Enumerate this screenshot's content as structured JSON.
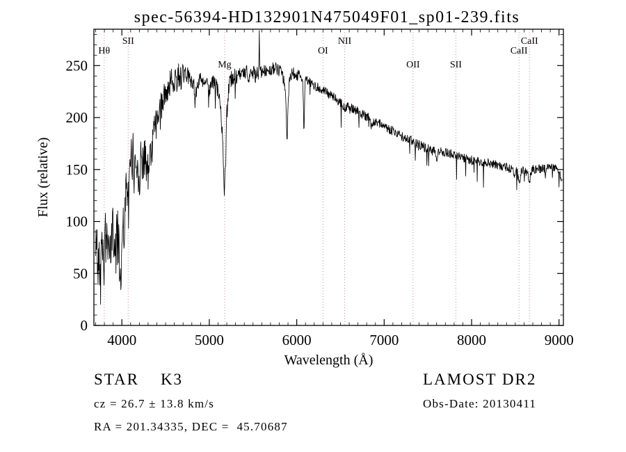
{
  "chart_data": {
    "type": "line",
    "title": "spec-56394-HD132901N475049F01_sp01-239.fits",
    "xlabel": "Wavelength (Å)",
    "ylabel": "Flux (relative)",
    "xlim": [
      3680,
      9050
    ],
    "ylim": [
      0,
      285
    ],
    "x_major_ticks": [
      4000,
      5000,
      6000,
      7000,
      8000,
      9000
    ],
    "x_minor_step": 100,
    "y_major_ticks": [
      0,
      50,
      100,
      150,
      200,
      250
    ],
    "y_minor_step": 10,
    "grid": false,
    "line_color": "#000000",
    "marker_line_color": "#c98b8b",
    "marker_label_color": "#1a1a1a",
    "marker_label_levels": [
      63,
      77,
      97
    ],
    "line_markers": [
      {
        "label": "Hθ",
        "wavelength": 3798,
        "level": 1
      },
      {
        "label": "SII",
        "wavelength": 4072,
        "level": 0
      },
      {
        "label": "Mg",
        "wavelength": 5175,
        "level": 2
      },
      {
        "label": "OI",
        "wavelength": 6300,
        "level": 1
      },
      {
        "label": "NII",
        "wavelength": 6548,
        "level": 0
      },
      {
        "label": "OII",
        "wavelength": 7330,
        "level": 2
      },
      {
        "label": "SII",
        "wavelength": 7820,
        "level": 2
      },
      {
        "label": "CaII",
        "wavelength": 8662,
        "level": 0
      },
      {
        "label": "CaII",
        "wavelength": 8542,
        "level": 1
      }
    ],
    "series": [
      {
        "name": "spectrum",
        "control_points": [
          [
            3700,
            62
          ],
          [
            3710,
            95
          ],
          [
            3725,
            45
          ],
          [
            3740,
            88
          ],
          [
            3755,
            35
          ],
          [
            3770,
            90
          ],
          [
            3785,
            70
          ],
          [
            3800,
            55
          ],
          [
            3815,
            95
          ],
          [
            3830,
            75
          ],
          [
            3850,
            88
          ],
          [
            3870,
            60
          ],
          [
            3890,
            95
          ],
          [
            3910,
            80
          ],
          [
            3930,
            70
          ],
          [
            3950,
            105
          ],
          [
            3970,
            60
          ],
          [
            3990,
            40
          ],
          [
            4010,
            110
          ],
          [
            4030,
            90
          ],
          [
            4050,
            135
          ],
          [
            4075,
            120
          ],
          [
            4100,
            155
          ],
          [
            4125,
            165
          ],
          [
            4150,
            150
          ],
          [
            4175,
            160
          ],
          [
            4200,
            145
          ],
          [
            4225,
            160
          ],
          [
            4250,
            165
          ],
          [
            4275,
            150
          ],
          [
            4300,
            140
          ],
          [
            4320,
            170
          ],
          [
            4340,
            160
          ],
          [
            4360,
            190
          ],
          [
            4380,
            200
          ],
          [
            4400,
            195
          ],
          [
            4430,
            205
          ],
          [
            4460,
            215
          ],
          [
            4490,
            222
          ],
          [
            4520,
            228
          ],
          [
            4550,
            232
          ],
          [
            4580,
            236
          ],
          [
            4610,
            238
          ],
          [
            4640,
            242
          ],
          [
            4670,
            240
          ],
          [
            4700,
            238
          ],
          [
            4730,
            242
          ],
          [
            4760,
            240
          ],
          [
            4790,
            236
          ],
          [
            4820,
            232
          ],
          [
            4850,
            224
          ],
          [
            4880,
            234
          ],
          [
            4910,
            238
          ],
          [
            4940,
            236
          ],
          [
            4970,
            232
          ],
          [
            5000,
            228
          ],
          [
            5030,
            234
          ],
          [
            5060,
            232
          ],
          [
            5090,
            228
          ],
          [
            5120,
            215
          ],
          [
            5150,
            185
          ],
          [
            5170,
            128
          ],
          [
            5185,
            150
          ],
          [
            5200,
            205
          ],
          [
            5220,
            228
          ],
          [
            5250,
            238
          ],
          [
            5280,
            240
          ],
          [
            5310,
            238
          ],
          [
            5340,
            240
          ],
          [
            5370,
            242
          ],
          [
            5400,
            240
          ],
          [
            5430,
            243
          ],
          [
            5460,
            241
          ],
          [
            5490,
            243
          ],
          [
            5520,
            241
          ],
          [
            5550,
            243
          ],
          [
            5566,
            244
          ],
          [
            5572,
            284
          ],
          [
            5578,
            244
          ],
          [
            5600,
            243
          ],
          [
            5630,
            245
          ],
          [
            5660,
            243
          ],
          [
            5690,
            246
          ],
          [
            5720,
            247
          ],
          [
            5750,
            248
          ],
          [
            5780,
            246
          ],
          [
            5810,
            244
          ],
          [
            5840,
            241
          ],
          [
            5870,
            225
          ],
          [
            5890,
            178
          ],
          [
            5905,
            220
          ],
          [
            5920,
            240
          ],
          [
            5950,
            243
          ],
          [
            5980,
            242
          ],
          [
            6010,
            241
          ],
          [
            6040,
            240
          ],
          [
            6070,
            238
          ],
          [
            6082,
            180
          ],
          [
            6094,
            237
          ],
          [
            6130,
            235
          ],
          [
            6160,
            233
          ],
          [
            6190,
            231
          ],
          [
            6220,
            230
          ],
          [
            6250,
            229
          ],
          [
            6280,
            227
          ],
          [
            6310,
            226
          ],
          [
            6340,
            224
          ],
          [
            6370,
            222
          ],
          [
            6400,
            221
          ],
          [
            6430,
            219
          ],
          [
            6460,
            217
          ],
          [
            6490,
            215
          ],
          [
            6520,
            213
          ],
          [
            6550,
            208
          ],
          [
            6580,
            212
          ],
          [
            6610,
            210
          ],
          [
            6640,
            209
          ],
          [
            6670,
            207
          ],
          [
            6700,
            206
          ],
          [
            6730,
            204
          ],
          [
            6760,
            203
          ],
          [
            6790,
            201
          ],
          [
            6820,
            200
          ],
          [
            6850,
            193
          ],
          [
            6880,
            196
          ],
          [
            6910,
            196
          ],
          [
            6940,
            195
          ],
          [
            6970,
            193
          ],
          [
            7000,
            192
          ],
          [
            7050,
            189
          ],
          [
            7100,
            187
          ],
          [
            7150,
            184
          ],
          [
            7200,
            182
          ],
          [
            7250,
            180
          ],
          [
            7300,
            178
          ],
          [
            7350,
            176
          ],
          [
            7400,
            174
          ],
          [
            7450,
            172
          ],
          [
            7500,
            170
          ],
          [
            7550,
            168
          ],
          [
            7580,
            167
          ],
          [
            7600,
            157
          ],
          [
            7620,
            166
          ],
          [
            7650,
            167
          ],
          [
            7700,
            167
          ],
          [
            7750,
            166
          ],
          [
            7800,
            164
          ],
          [
            7850,
            162
          ],
          [
            7900,
            161
          ],
          [
            7950,
            160
          ],
          [
            8000,
            159
          ],
          [
            8050,
            158
          ],
          [
            8100,
            157
          ],
          [
            8150,
            157
          ],
          [
            8200,
            156
          ],
          [
            8250,
            155
          ],
          [
            8300,
            154
          ],
          [
            8350,
            153
          ],
          [
            8400,
            152
          ],
          [
            8450,
            151
          ],
          [
            8490,
            146
          ],
          [
            8520,
            150
          ],
          [
            8545,
            136
          ],
          [
            8570,
            150
          ],
          [
            8620,
            149
          ],
          [
            8665,
            140
          ],
          [
            8690,
            150
          ],
          [
            8740,
            150
          ],
          [
            8790,
            151
          ],
          [
            8840,
            150
          ],
          [
            8890,
            152
          ],
          [
            8940,
            151
          ],
          [
            8990,
            150
          ],
          [
            9010,
            148
          ],
          [
            9030,
            140
          ]
        ]
      }
    ],
    "noise": {
      "seed": 42,
      "step": 4,
      "segments": [
        {
          "to": 4350,
          "amp": 24,
          "dip_prob": 0.08,
          "dip_depth": 40
        },
        {
          "to": 4700,
          "amp": 13,
          "dip_prob": 0.05,
          "dip_depth": 25
        },
        {
          "to": 5560,
          "amp": 8,
          "dip_prob": 0.04,
          "dip_depth": 20
        },
        {
          "to": 6100,
          "amp": 6,
          "dip_prob": 0.04,
          "dip_depth": 18
        },
        {
          "to": 9050,
          "amp": 4.5,
          "dip_prob": 0.035,
          "dip_depth": 26
        }
      ],
      "clip_min": 20,
      "clip_max": 284
    }
  },
  "footer": {
    "left": [
      {
        "text": "STAR    K3"
      },
      {
        "text": "cz = 26.7 ± 13.8 km/s"
      },
      {
        "text": "RA = 201.34335, DEC =  45.70687"
      }
    ],
    "right": [
      {
        "text": "LAMOST DR2"
      },
      {
        "text": "Obs-Date: 20130411"
      }
    ]
  }
}
